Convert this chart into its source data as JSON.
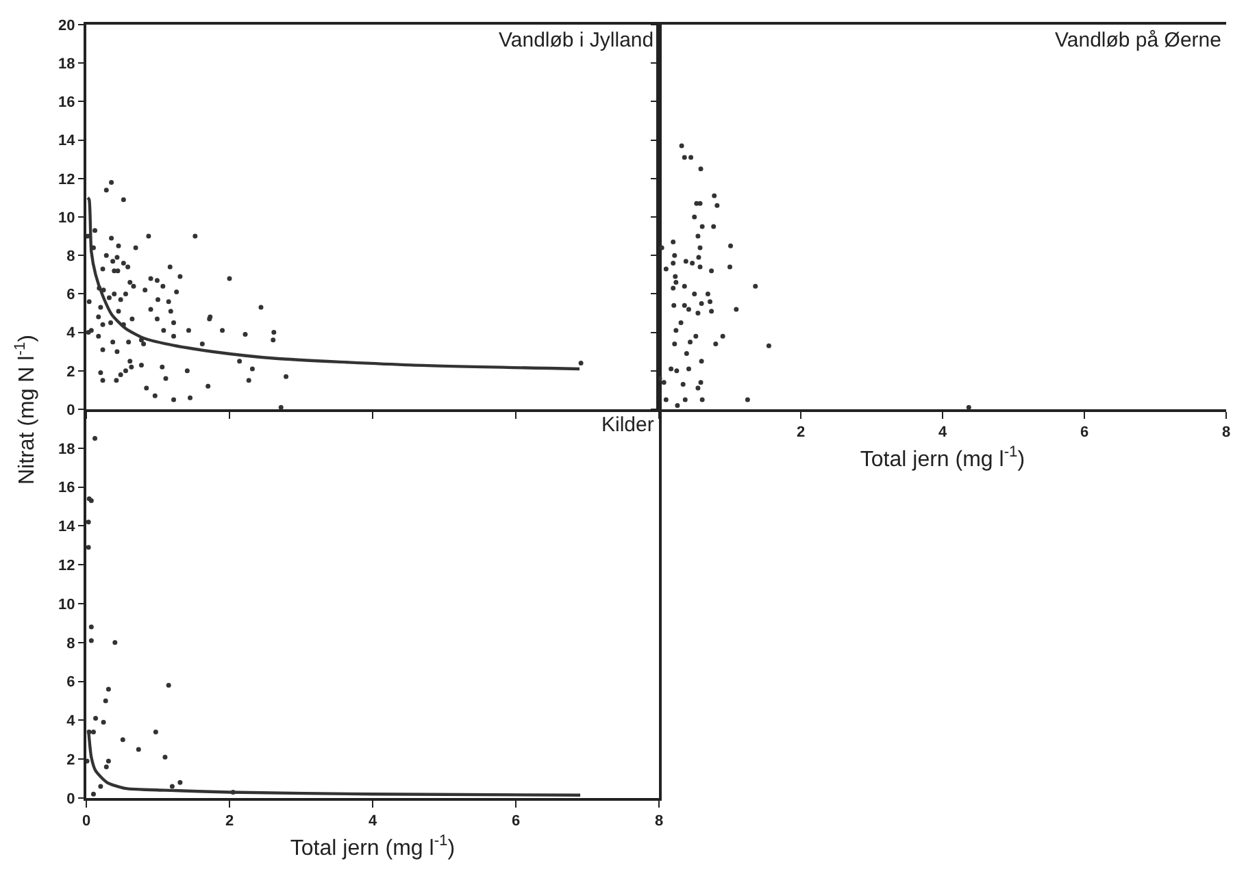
{
  "chart_data": [
    {
      "type": "scatter",
      "title": "Vandløb i Jylland",
      "ylabel": "Nitrat (mg N l$^{-1}$)",
      "tick_labels": "y",
      "xlim": [
        0,
        8
      ],
      "xticks": [
        0,
        2,
        4,
        6,
        8
      ],
      "ylim": [
        0,
        20
      ],
      "yticks": [
        0,
        2,
        4,
        6,
        8,
        10,
        12,
        14,
        16,
        18,
        20
      ],
      "series": [
        {
          "marker": "circle",
          "color": "#333333",
          "x": [
            0.28,
            0.35,
            0.52,
            0.12,
            0.35,
            0.45,
            0.87,
            1.52,
            0.69,
            0.1,
            0.28,
            0.37,
            0.43,
            0.52,
            0.58,
            0.23,
            0.39,
            0.44,
            1.17,
            0.9,
            0.99,
            1.31,
            2.0,
            0.61,
            0.66,
            1.07,
            0.18,
            0.24,
            0.82,
            0.55,
            0.39,
            1.26,
            0.04,
            0.32,
            0.48,
            1.0,
            1.15,
            0.2,
            0.45,
            0.9,
            1.18,
            2.44,
            0.17,
            0.64,
            0.99,
            1.22,
            1.73,
            1.72,
            0.23,
            0.34,
            0.52,
            1.9,
            1.43,
            1.08,
            0.07,
            0.17,
            0.77,
            1.22,
            2.22,
            2.62,
            2.61,
            0.59,
            0.37,
            0.23,
            0.43,
            0.8,
            1.62,
            2.14,
            2.32,
            0.61,
            0.77,
            1.06,
            0.2,
            0.48,
            0.55,
            0.63,
            1.41,
            0.23,
            0.42,
            1.11,
            2.27,
            2.79,
            1.7,
            0.84,
            0.96,
            1.22,
            1.45,
            6.91,
            2.72,
            0.02,
            0.03
          ],
          "values": [
            11.4,
            11.8,
            10.9,
            9.3,
            8.9,
            8.5,
            9.0,
            9.0,
            8.4,
            8.4,
            8.0,
            7.7,
            7.9,
            7.6,
            7.4,
            7.3,
            7.2,
            7.2,
            7.4,
            6.8,
            6.7,
            6.9,
            6.8,
            6.6,
            6.4,
            6.4,
            6.3,
            6.2,
            6.2,
            6.0,
            6.0,
            6.1,
            5.6,
            5.8,
            5.7,
            5.7,
            5.6,
            5.3,
            5.1,
            5.2,
            5.1,
            5.3,
            4.8,
            4.7,
            4.7,
            4.5,
            4.8,
            4.7,
            4.4,
            4.5,
            4.4,
            4.1,
            4.1,
            4.1,
            4.1,
            3.8,
            3.6,
            3.8,
            3.9,
            4.0,
            3.6,
            3.5,
            3.5,
            3.1,
            3.0,
            3.4,
            3.4,
            2.5,
            2.1,
            2.5,
            2.3,
            2.2,
            1.9,
            1.8,
            2.0,
            2.2,
            2.0,
            1.5,
            1.5,
            1.6,
            1.5,
            1.7,
            1.2,
            1.1,
            0.7,
            0.5,
            0.6,
            2.4,
            0.1,
            9.0,
            4.0
          ]
        },
        {
          "type": "line",
          "marker": "none",
          "color": "#333333",
          "x": [
            0.02,
            0.04,
            0.07,
            0.13,
            0.23,
            0.36,
            0.55,
            0.8,
            1.25,
            1.76,
            2.62,
            4.54,
            6.89
          ],
          "values": [
            11.0,
            10.9,
            8.2,
            7.0,
            5.9,
            4.9,
            4.2,
            3.7,
            3.3,
            3.0,
            2.65,
            2.3,
            2.1
          ]
        }
      ]
    },
    {
      "type": "scatter",
      "title": "Vandløb på Øerne",
      "xlabel": "Total jern (mg l$^{-1}$)",
      "tick_labels": "x",
      "xlim": [
        0,
        8
      ],
      "xticks": [
        {
          "value": 0,
          "label": null
        },
        2,
        4,
        6,
        8
      ],
      "ylim": [
        0,
        20
      ],
      "yticks": [
        0,
        2,
        4,
        6,
        8,
        10,
        12,
        14,
        16,
        18,
        20
      ],
      "series": [
        {
          "marker": "circle",
          "color": "#333333",
          "x": [
            0.32,
            0.36,
            0.45,
            0.59,
            0.78,
            0.82,
            0.53,
            0.58,
            0.5,
            0.77,
            0.61,
            0.55,
            0.2,
            0.04,
            1.01,
            0.58,
            0.22,
            0.38,
            0.47,
            0.56,
            0.2,
            0.1,
            0.58,
            0.74,
            1.0,
            0.23,
            0.24,
            0.2,
            0.36,
            0.5,
            0.69,
            1.36,
            0.21,
            0.36,
            0.42,
            0.55,
            0.6,
            0.72,
            0.74,
            1.09,
            0.31,
            0.24,
            0.52,
            0.9,
            0.44,
            0.22,
            0.8,
            1.55,
            0.39,
            0.6,
            0.17,
            0.25,
            0.42,
            0.01,
            0.07,
            0.59,
            0.34,
            0.55,
            0.1,
            0.37,
            0.61,
            1.25,
            0.26,
            4.37
          ],
          "values": [
            13.7,
            13.1,
            13.1,
            12.5,
            11.1,
            10.6,
            10.7,
            10.7,
            10.0,
            9.5,
            9.5,
            9.0,
            8.7,
            8.4,
            8.5,
            8.4,
            8.0,
            7.7,
            7.6,
            7.9,
            7.6,
            7.3,
            7.4,
            7.2,
            7.4,
            6.9,
            6.6,
            6.3,
            6.4,
            6.0,
            6.0,
            6.4,
            5.4,
            5.4,
            5.2,
            5.0,
            5.5,
            5.6,
            5.1,
            5.2,
            4.5,
            4.1,
            3.8,
            3.8,
            3.5,
            3.4,
            3.4,
            3.3,
            2.9,
            2.5,
            2.1,
            2.0,
            2.1,
            1.6,
            1.4,
            1.4,
            1.3,
            1.1,
            0.5,
            0.5,
            0.5,
            0.5,
            0.2,
            0.1
          ]
        }
      ]
    },
    {
      "type": "scatter",
      "title": "Kilder",
      "xlabel": "Total jern (mg l$^{-1}$)",
      "xlim": [
        0,
        8
      ],
      "xticks": [
        0,
        2,
        4,
        6,
        8
      ],
      "ylim": [
        0,
        20
      ],
      "yticks": [
        0,
        2,
        4,
        6,
        8,
        10,
        12,
        14,
        16,
        18,
        {
          "value": 20,
          "label": null
        }
      ],
      "series": [
        {
          "marker": "circle",
          "color": "#333333",
          "x": [
            0.12,
            0.04,
            0.07,
            0.03,
            0.03,
            0.07,
            0.07,
            0.4,
            0.31,
            0.27,
            1.15,
            0.13,
            0.24,
            0.04,
            0.1,
            0.97,
            0.51,
            0.73,
            1.1,
            0.31,
            0.28,
            0.01,
            0.2,
            1.31,
            1.2,
            0.1,
            2.05
          ],
          "values": [
            18.5,
            15.4,
            15.3,
            14.2,
            12.9,
            8.8,
            8.1,
            8.0,
            5.6,
            5.0,
            5.8,
            4.1,
            3.9,
            3.4,
            3.4,
            3.4,
            3.0,
            2.5,
            2.1,
            1.9,
            1.6,
            1.9,
            0.6,
            0.8,
            0.6,
            0.2,
            0.3
          ]
        },
        {
          "type": "line",
          "marker": "none",
          "color": "#333333",
          "x": [
            0.03,
            0.07,
            0.13,
            0.29,
            0.54,
            1.1,
            2.0,
            4.0,
            6.9
          ],
          "values": [
            3.5,
            2.1,
            1.4,
            0.8,
            0.5,
            0.4,
            0.3,
            0.2,
            0.15
          ]
        }
      ]
    }
  ]
}
